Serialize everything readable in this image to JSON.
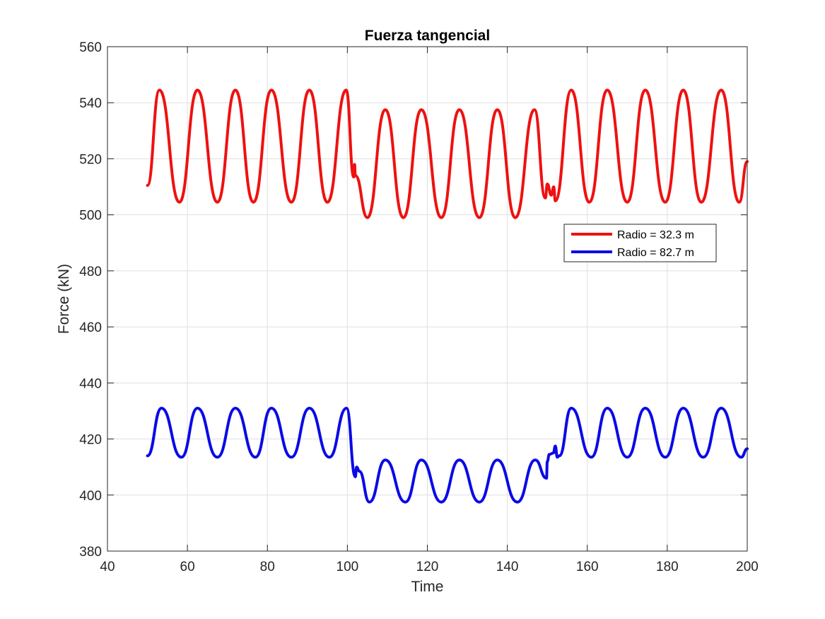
{
  "chart_data": {
    "type": "line",
    "title": "Fuerza tangencial",
    "xlabel": "Time",
    "ylabel": "Force (kN)",
    "xlim": [
      40,
      200
    ],
    "ylim": [
      380,
      560
    ],
    "xticks": [
      40,
      60,
      80,
      100,
      120,
      140,
      160,
      180,
      200
    ],
    "yticks": [
      380,
      400,
      420,
      440,
      460,
      480,
      500,
      520,
      540,
      560
    ],
    "grid": true,
    "legend_position": "right",
    "series": [
      {
        "name": "Radio = 32.3 m",
        "color": "#ee1111",
        "x": [
          50,
          53,
          58,
          62.5,
          67.5,
          72,
          76.5,
          81,
          86,
          90.5,
          95,
          99.7,
          101.6,
          101.8,
          102,
          105,
          109.5,
          114,
          118.5,
          123.5,
          128,
          133,
          137.5,
          142,
          146.8,
          149.5,
          150,
          151,
          151.6,
          152,
          156,
          160.5,
          165,
          170,
          174.5,
          179.5,
          184,
          188.5,
          193.5,
          198,
          200
        ],
        "y": [
          510.5,
          544.5,
          504.5,
          544.5,
          504.5,
          544.5,
          504.5,
          544.5,
          504.5,
          544.5,
          504.5,
          544.5,
          513.5,
          518,
          514,
          499,
          537.5,
          499,
          537.5,
          499,
          537.5,
          499,
          537.5,
          499,
          537.5,
          506,
          511,
          507,
          510,
          505,
          544.5,
          504.5,
          544.5,
          504.5,
          544.5,
          504.5,
          544.5,
          504.5,
          544.5,
          504.5,
          519
        ]
      },
      {
        "name": "Radio = 82.7 m",
        "color": "#0a0ae6",
        "x": [
          50,
          53.5,
          58.5,
          62.5,
          67.5,
          72,
          77,
          81,
          86,
          90.5,
          95.5,
          99.8,
          102,
          102.3,
          103,
          105.5,
          109.5,
          114.5,
          118.5,
          123.5,
          128,
          133,
          137.5,
          142.5,
          147,
          149.8,
          150,
          150.5,
          151.5,
          152,
          152.5,
          153,
          156,
          161,
          165,
          170,
          174.5,
          179.5,
          184,
          189,
          193.5,
          198.5,
          200
        ],
        "y": [
          414,
          431,
          413.5,
          431,
          413.5,
          431,
          413.5,
          431,
          413.5,
          431,
          413.5,
          431,
          406.5,
          410,
          408.5,
          397.5,
          412.5,
          397.5,
          412.5,
          397.5,
          412.5,
          397.5,
          412.5,
          397.5,
          412.5,
          406,
          412,
          414.5,
          415,
          417.5,
          413.5,
          414,
          431,
          413.5,
          431,
          413.5,
          431,
          413.5,
          431,
          413.5,
          431,
          413.5,
          416.5
        ]
      }
    ]
  }
}
